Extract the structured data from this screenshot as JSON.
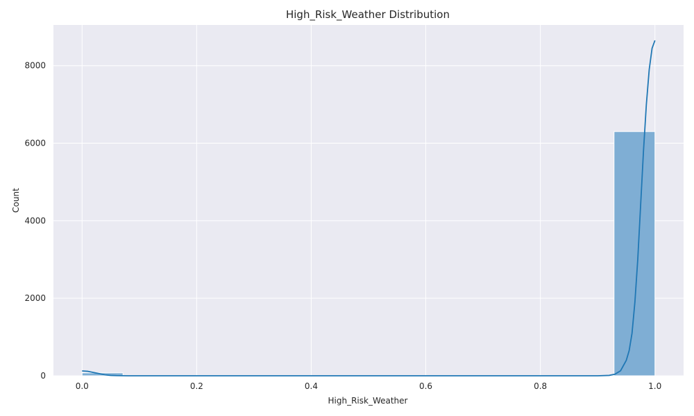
{
  "chart_data": {
    "type": "bar",
    "title": "High_Risk_Weather Distribution",
    "xlabel": "High_Risk_Weather",
    "ylabel": "Count",
    "xlim": [
      -0.05,
      1.05
    ],
    "ylim": [
      0,
      9050
    ],
    "xticks": [
      0.0,
      0.2,
      0.4,
      0.6,
      0.8,
      1.0
    ],
    "xtick_labels": [
      "0.0",
      "0.2",
      "0.4",
      "0.6",
      "0.8",
      "1.0"
    ],
    "yticks": [
      0,
      2000,
      4000,
      6000,
      8000
    ],
    "ytick_labels": [
      "0",
      "2000",
      "4000",
      "6000",
      "8000"
    ],
    "grid": true,
    "bins": [
      {
        "x0": 0.0,
        "x1": 0.0714,
        "count": 75
      },
      {
        "x0": 0.9286,
        "x1": 1.0,
        "count": 6300
      }
    ],
    "kde_series": {
      "name": "",
      "x": [
        0.0,
        0.01,
        0.02,
        0.03,
        0.04,
        0.05,
        0.06,
        0.07,
        0.08,
        0.1,
        0.3,
        0.5,
        0.7,
        0.9,
        0.92,
        0.93,
        0.94,
        0.95,
        0.955,
        0.96,
        0.965,
        0.97,
        0.975,
        0.98,
        0.985,
        0.99,
        0.995,
        1.0
      ],
      "y": [
        125,
        115,
        85,
        55,
        25,
        10,
        4,
        2,
        0,
        0,
        0,
        0,
        0,
        0,
        10,
        40,
        130,
        400,
        650,
        1100,
        1900,
        3000,
        4400,
        5800,
        7000,
        7900,
        8450,
        8650
      ]
    },
    "colors": {
      "background": "#eaeaf2",
      "grid": "#ffffff",
      "bar_fill": "#7faed4",
      "bar_edge": "#ffffff",
      "line": "#1f77b4"
    }
  }
}
